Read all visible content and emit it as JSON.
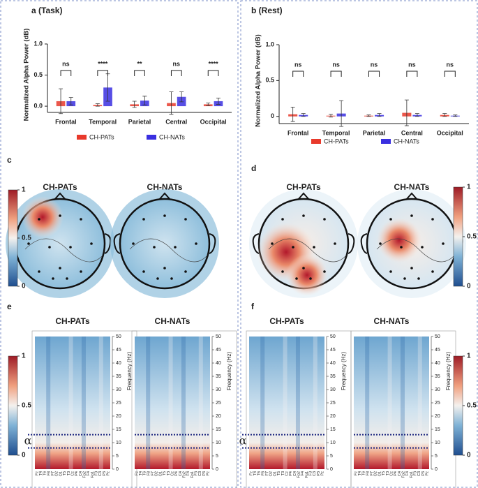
{
  "chart_data": [
    {
      "type": "bar",
      "label": "a (Task)",
      "ylabel": "Normalized Alpha Power (dB)",
      "categories": [
        "Frontal",
        "Temporal",
        "Parietal",
        "Central",
        "Occipital"
      ],
      "series": [
        {
          "name": "CH-PATs",
          "color": "#e8392b",
          "values": [
            0.08,
            0.02,
            0.03,
            0.05,
            0.03
          ],
          "errors": [
            0.2,
            0.02,
            0.05,
            0.18,
            0.02
          ]
        },
        {
          "name": "CH-NATs",
          "color": "#3a2fe0",
          "values": [
            0.08,
            0.3,
            0.09,
            0.15,
            0.08
          ],
          "errors": [
            0.06,
            0.22,
            0.07,
            0.08,
            0.05
          ]
        }
      ],
      "significance": [
        "ns",
        "****",
        "**",
        "ns",
        "****"
      ],
      "ylim": [
        -0.1,
        1
      ],
      "yticks": [
        {
          "value": 0,
          "label": "0.0"
        },
        0.5,
        {
          "value": 1,
          "label": "1.0"
        }
      ]
    },
    {
      "type": "bar",
      "label": "b (Rest)",
      "ylabel": "Normalized Alpha Power (dB)",
      "categories": [
        "Frontal",
        "Temporal",
        "Parietal",
        "Central",
        "Occipital"
      ],
      "series": [
        {
          "name": "CH-PATs",
          "color": "#e8392b",
          "values": [
            0.03,
            0.01,
            0.01,
            0.05,
            0.02
          ],
          "errors": [
            0.1,
            0.02,
            0.01,
            0.18,
            0.02
          ]
        },
        {
          "name": "CH-NATs",
          "color": "#3a2fe0",
          "values": [
            0.02,
            0.04,
            0.02,
            0.02,
            0.01
          ],
          "errors": [
            0.02,
            0.18,
            0.02,
            0.02,
            0.01
          ]
        }
      ],
      "significance": [
        "ns",
        "ns",
        "ns",
        "ns",
        "ns"
      ],
      "ylim": [
        -0.1,
        1
      ],
      "yticks": [
        0,
        0.5,
        {
          "value": 1,
          "label": "1.0"
        }
      ]
    },
    {
      "type": "topomap",
      "label": "c",
      "titles": [
        "CH-PATs",
        "CH-NATs"
      ],
      "clim": [
        0,
        1
      ],
      "cticks": [
        0,
        0.5,
        1
      ]
    },
    {
      "type": "topomap",
      "label": "d",
      "titles": [
        "CH-PATs",
        "CH-NATs"
      ],
      "clim": [
        0,
        1
      ],
      "cticks": [
        0,
        0.5,
        1
      ]
    },
    {
      "type": "spectrogram",
      "label": "e",
      "titles": [
        "CH-PATs",
        "CH-NATs"
      ],
      "ylabel": "Frequency (Hz)",
      "ylim": [
        0,
        50
      ],
      "yticks": [
        0,
        5,
        10,
        15,
        20,
        25,
        30,
        35,
        40,
        45,
        50
      ],
      "band": [
        8,
        13
      ],
      "band_label": "α",
      "channels": [
        "Fz",
        "T4",
        "T6",
        "F8",
        "F7",
        "O2",
        "O1",
        "T5",
        "T3",
        "Cz",
        "P4",
        "C4",
        "Fp2",
        "F4",
        "Fp1",
        "F3",
        "C3",
        "P3",
        "Pz"
      ],
      "clim": [
        0,
        1
      ],
      "cticks": [
        0,
        0.5,
        1
      ]
    },
    {
      "type": "spectrogram",
      "label": "f",
      "titles": [
        "CH-PATs",
        "CH-NATs"
      ],
      "ylabel": "Frequency (Hz)",
      "ylim": [
        0,
        50
      ],
      "yticks": [
        0,
        5,
        10,
        15,
        20,
        25,
        30,
        35,
        40,
        45,
        50
      ],
      "band": [
        8,
        13
      ],
      "band_label": "α",
      "channels": [
        "Fz",
        "T4",
        "T6",
        "F8",
        "F7",
        "O2",
        "O1",
        "T5",
        "T3",
        "Cz",
        "P4",
        "C4",
        "Fp2",
        "F4",
        "Fp1",
        "F3",
        "C3",
        "P3",
        "Pz"
      ],
      "clim": [
        0,
        1
      ],
      "cticks": [
        0,
        0.5,
        1
      ]
    }
  ]
}
